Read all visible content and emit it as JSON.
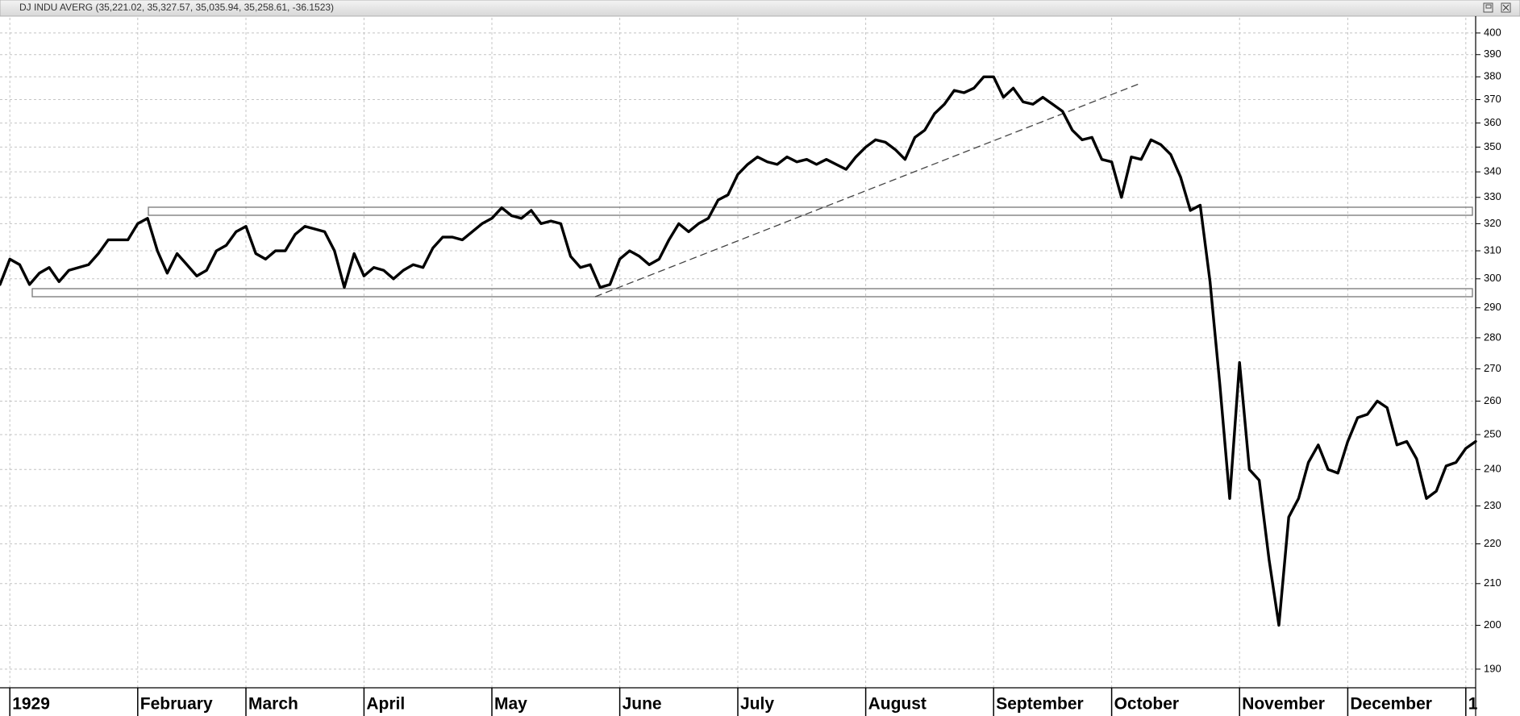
{
  "chart_data": {
    "type": "line",
    "title": "DJ INDU AVERG (35,221.02, 35,327.57, 35,035.94, 35,258.61, -36.1523)",
    "categories": [
      null,
      "1929",
      null,
      null,
      null,
      null,
      null,
      null,
      null,
      null,
      null,
      null,
      null,
      null,
      "February",
      null,
      null,
      null,
      null,
      null,
      null,
      null,
      null,
      null,
      null,
      "March",
      null,
      null,
      null,
      null,
      null,
      null,
      null,
      null,
      null,
      null,
      null,
      "April",
      null,
      null,
      null,
      null,
      null,
      null,
      null,
      null,
      null,
      null,
      null,
      null,
      "May",
      null,
      null,
      null,
      null,
      null,
      null,
      null,
      null,
      null,
      null,
      null,
      null,
      "June",
      null,
      null,
      null,
      null,
      null,
      null,
      null,
      null,
      null,
      null,
      null,
      "July",
      null,
      null,
      null,
      null,
      null,
      null,
      null,
      null,
      null,
      null,
      null,
      null,
      "August",
      null,
      null,
      null,
      null,
      null,
      null,
      null,
      null,
      null,
      null,
      null,
      null,
      "September",
      null,
      null,
      null,
      null,
      null,
      null,
      null,
      null,
      null,
      null,
      null,
      "October",
      null,
      null,
      null,
      null,
      null,
      null,
      null,
      null,
      null,
      null,
      null,
      null,
      "November",
      null,
      null,
      null,
      null,
      null,
      null,
      null,
      null,
      null,
      null,
      "December",
      null,
      null,
      null,
      null,
      null,
      null,
      null,
      null,
      null,
      null,
      null,
      "1",
      null
    ],
    "values": [
      298,
      307,
      305,
      298,
      302,
      304,
      299,
      303,
      304,
      305,
      309,
      314,
      314,
      314,
      320,
      322,
      310,
      302,
      309,
      305,
      301,
      303,
      310,
      312,
      317,
      319,
      309,
      307,
      310,
      310,
      316,
      319,
      318,
      317,
      310,
      297,
      309,
      301,
      304,
      303,
      300,
      303,
      305,
      304,
      311,
      315,
      315,
      314,
      317,
      320,
      322,
      326,
      323,
      322,
      325,
      320,
      321,
      320,
      308,
      304,
      305,
      297,
      298,
      307,
      310,
      308,
      305,
      307,
      314,
      320,
      317,
      320,
      322,
      329,
      331,
      339,
      343,
      346,
      344,
      343,
      346,
      344,
      345,
      343,
      345,
      343,
      341,
      346,
      350,
      353,
      352,
      349,
      345,
      354,
      357,
      364,
      368,
      374,
      373,
      375,
      380,
      380,
      371,
      375,
      369,
      368,
      371,
      368,
      365,
      357,
      353,
      354,
      345,
      344,
      330,
      346,
      345,
      353,
      351,
      347,
      338,
      325,
      327,
      299,
      265,
      232,
      272,
      240,
      237,
      216,
      200,
      227,
      232,
      242,
      247,
      240,
      239,
      248,
      255,
      256,
      260,
      258,
      247,
      248,
      243,
      232,
      234,
      241,
      242,
      246,
      248
    ],
    "color": "#000000",
    "log_scale": true,
    "grid": true,
    "ylim": [
      185.9,
      407.2
    ],
    "yticks": [
      190,
      200,
      210,
      220,
      230,
      240,
      250,
      260,
      270,
      280,
      290,
      300,
      310,
      320,
      330,
      340,
      350,
      360,
      370,
      380,
      390,
      400
    ]
  }
}
